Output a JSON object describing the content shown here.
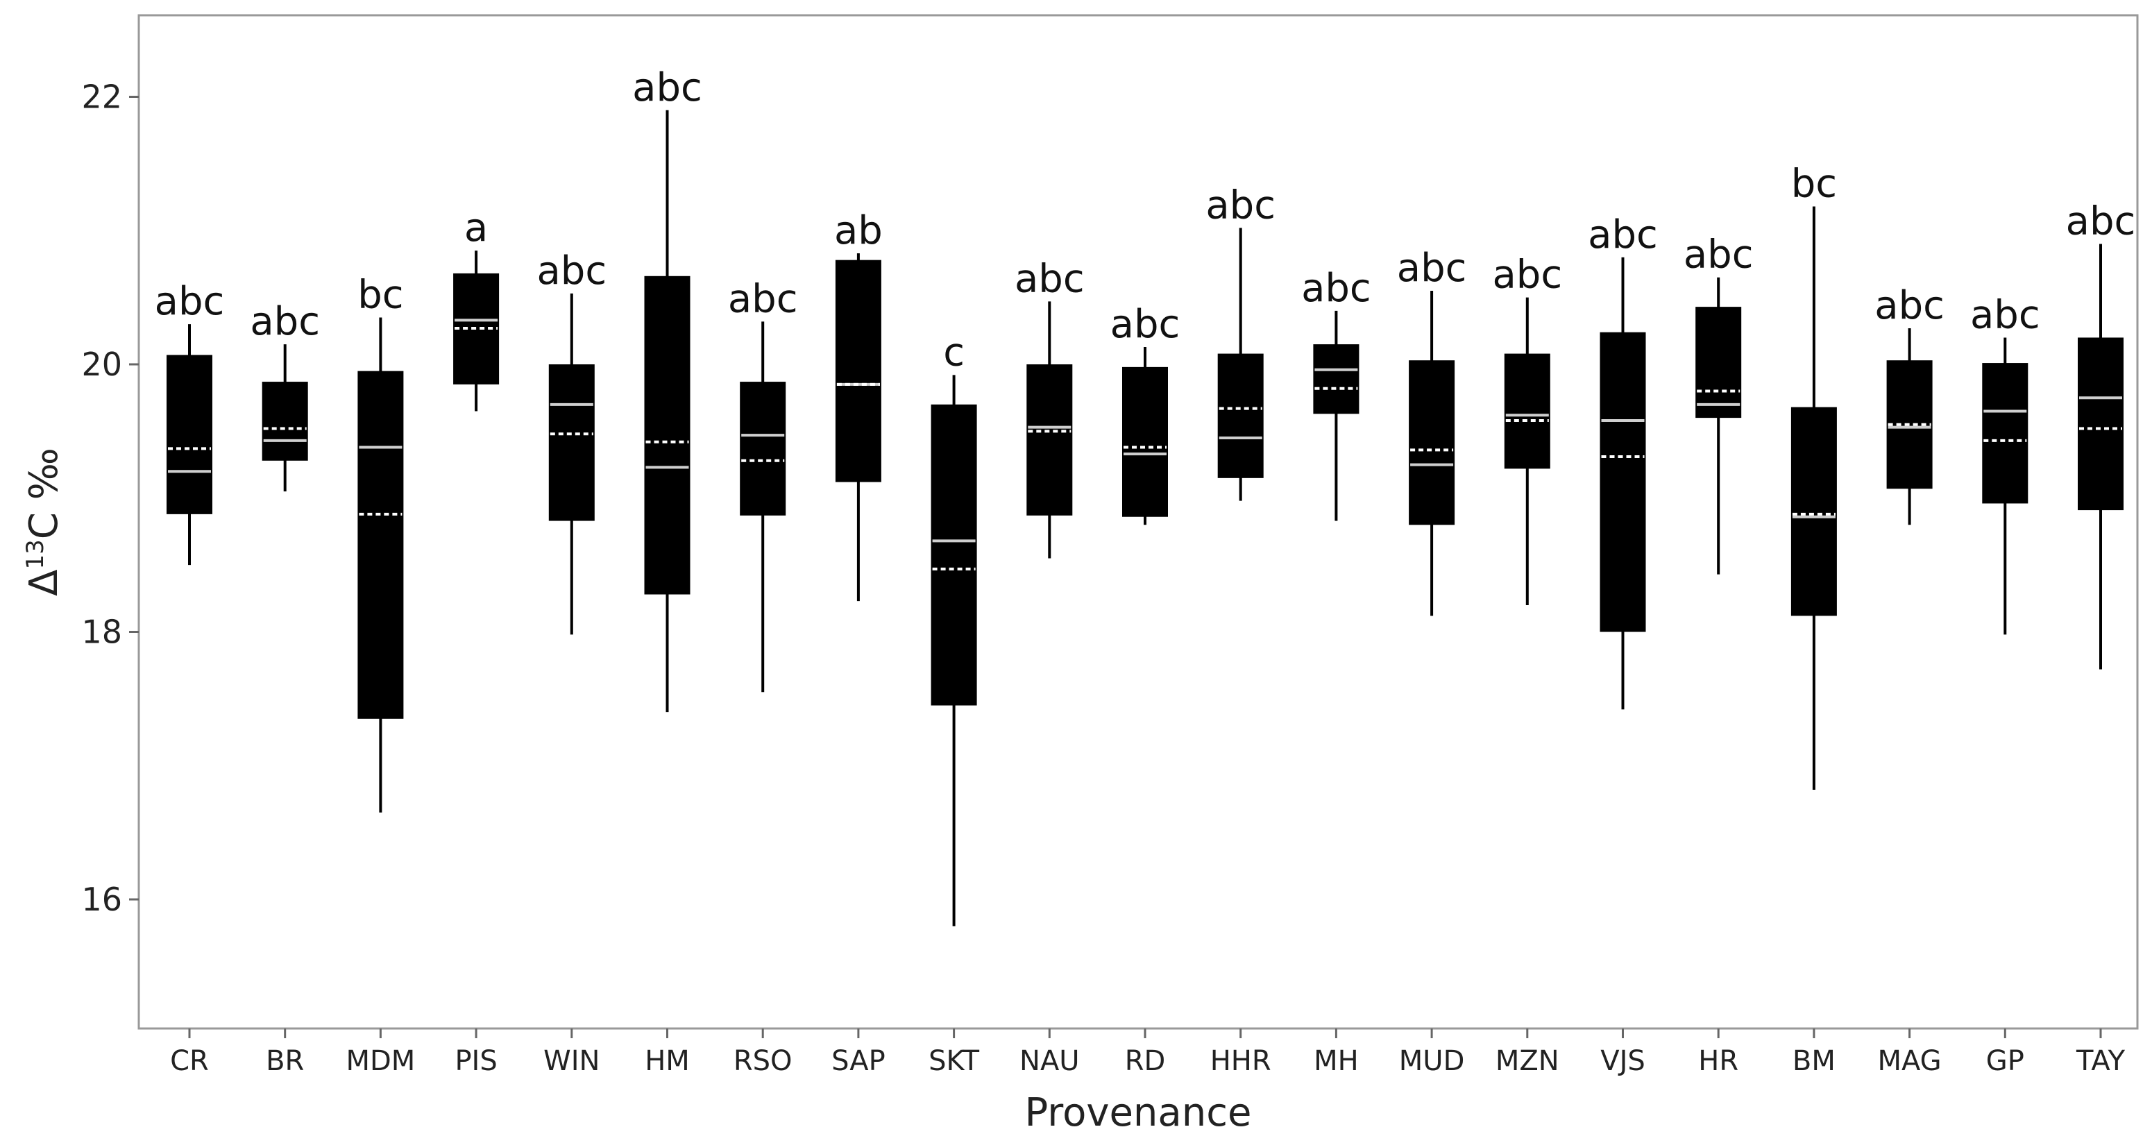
{
  "chart_data": {
    "type": "box",
    "title": "",
    "xlabel": "Provenance",
    "ylabel": {
      "prefix": "Δ",
      "superscript": "13",
      "suffix": "C ‰"
    },
    "ylim": [
      15,
      22.6
    ],
    "yticks": [
      16,
      18,
      20,
      22
    ],
    "grid": false,
    "legend": "none",
    "colors": {
      "box": "#000000",
      "median": "#cfcfcf",
      "mean": "#ffffff",
      "whisker": "#000000"
    },
    "categories": [
      "CR",
      "BR",
      "MDM",
      "PIS",
      "WIN",
      "HM",
      "RSO",
      "SAP",
      "SKT",
      "NAU",
      "RD",
      "HHR",
      "MH",
      "MUD",
      "MZN",
      "VJS",
      "HR",
      "BM",
      "MAG",
      "GP",
      "TAY"
    ],
    "boxes": [
      {
        "category": "CR",
        "min": 18.5,
        "q1": 18.88,
        "median": 19.2,
        "mean": 19.37,
        "q3": 20.07,
        "max": 20.3,
        "group": "abc"
      },
      {
        "category": "BR",
        "min": 19.05,
        "q1": 19.28,
        "median": 19.43,
        "mean": 19.52,
        "q3": 19.87,
        "max": 20.15,
        "group": "abc"
      },
      {
        "category": "MDM",
        "min": 16.65,
        "q1": 17.35,
        "median": 19.38,
        "mean": 18.88,
        "q3": 19.95,
        "max": 20.35,
        "group": "bc"
      },
      {
        "category": "PIS",
        "min": 19.65,
        "q1": 19.85,
        "median": 20.33,
        "mean": 20.27,
        "q3": 20.68,
        "max": 20.85,
        "group": "a"
      },
      {
        "category": "WIN",
        "min": 17.98,
        "q1": 18.83,
        "median": 19.7,
        "mean": 19.48,
        "q3": 20.0,
        "max": 20.53,
        "group": "abc"
      },
      {
        "category": "HM",
        "min": 17.4,
        "q1": 18.28,
        "median": 19.23,
        "mean": 19.42,
        "q3": 20.66,
        "max": 21.9,
        "group": "abc"
      },
      {
        "category": "RSO",
        "min": 17.55,
        "q1": 18.87,
        "median": 19.47,
        "mean": 19.28,
        "q3": 19.87,
        "max": 20.32,
        "group": "abc"
      },
      {
        "category": "SAP",
        "min": 18.23,
        "q1": 19.12,
        "median": 19.85,
        "mean": 19.85,
        "q3": 20.78,
        "max": 20.83,
        "group": "ab"
      },
      {
        "category": "SKT",
        "min": 15.8,
        "q1": 17.45,
        "median": 18.68,
        "mean": 18.47,
        "q3": 19.7,
        "max": 19.92,
        "group": "c"
      },
      {
        "category": "NAU",
        "min": 18.55,
        "q1": 18.87,
        "median": 19.53,
        "mean": 19.5,
        "q3": 20.0,
        "max": 20.47,
        "group": "abc"
      },
      {
        "category": "RD",
        "min": 18.8,
        "q1": 18.86,
        "median": 19.33,
        "mean": 19.38,
        "q3": 19.98,
        "max": 20.13,
        "group": "abc"
      },
      {
        "category": "HHR",
        "min": 18.98,
        "q1": 19.15,
        "median": 19.45,
        "mean": 19.67,
        "q3": 20.08,
        "max": 21.02,
        "group": "abc"
      },
      {
        "category": "MH",
        "min": 18.83,
        "q1": 19.63,
        "median": 19.96,
        "mean": 19.82,
        "q3": 20.15,
        "max": 20.4,
        "group": "abc"
      },
      {
        "category": "MUD",
        "min": 18.12,
        "q1": 18.8,
        "median": 19.25,
        "mean": 19.36,
        "q3": 20.03,
        "max": 20.55,
        "group": "abc"
      },
      {
        "category": "MZN",
        "min": 18.2,
        "q1": 19.22,
        "median": 19.62,
        "mean": 19.58,
        "q3": 20.08,
        "max": 20.5,
        "group": "abc"
      },
      {
        "category": "VJS",
        "min": 17.42,
        "q1": 18.0,
        "median": 19.58,
        "mean": 19.31,
        "q3": 20.24,
        "max": 20.8,
        "group": "abc"
      },
      {
        "category": "HR",
        "min": 18.43,
        "q1": 19.6,
        "median": 19.7,
        "mean": 19.8,
        "q3": 20.43,
        "max": 20.65,
        "group": "abc"
      },
      {
        "category": "BM",
        "min": 16.82,
        "q1": 18.12,
        "median": 18.86,
        "mean": 18.88,
        "q3": 19.68,
        "max": 21.18,
        "group": "bc"
      },
      {
        "category": "MAG",
        "min": 18.8,
        "q1": 19.07,
        "median": 19.53,
        "mean": 19.55,
        "q3": 20.03,
        "max": 20.27,
        "group": "abc"
      },
      {
        "category": "GP",
        "min": 17.98,
        "q1": 18.96,
        "median": 19.65,
        "mean": 19.43,
        "q3": 20.01,
        "max": 20.2,
        "group": "abc"
      },
      {
        "category": "TAY",
        "min": 17.72,
        "q1": 18.91,
        "median": 19.75,
        "mean": 19.52,
        "q3": 20.2,
        "max": 20.9,
        "group": "abc"
      }
    ]
  }
}
